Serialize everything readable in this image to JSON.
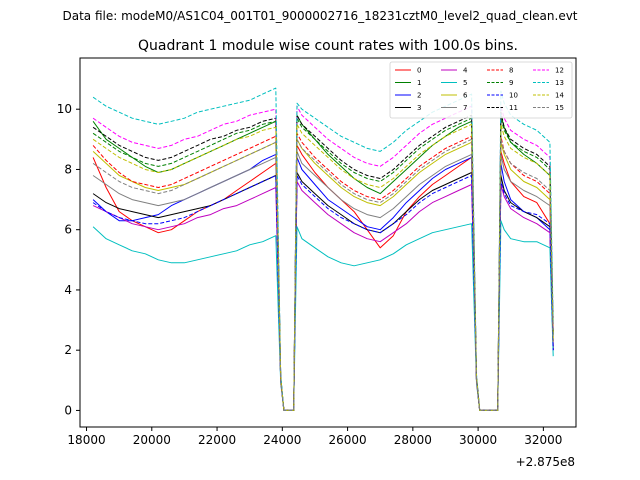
{
  "suptitle": "Data file: modeM0/AS1C04_001T01_9000002716_18231cztM0_level2_quad_clean.evt",
  "chart_data": {
    "type": "line",
    "title": "Quadrant 1 module wise count rates with 100.0s bins.",
    "xlabel": "",
    "ylabel": "",
    "x_offset_label": "+2.875e8",
    "xlim": [
      17800,
      33000
    ],
    "ylim": [
      -0.55,
      11.7
    ],
    "x_ticks": [
      18000,
      20000,
      22000,
      24000,
      26000,
      28000,
      30000,
      32000
    ],
    "x_tick_labels": [
      "18000",
      "20000",
      "22000",
      "24000",
      "26000",
      "28000",
      "30000",
      "32000"
    ],
    "y_ticks": [
      0,
      2,
      4,
      6,
      8,
      10
    ],
    "y_tick_labels": [
      "0",
      "2",
      "4",
      "6",
      "8",
      "10"
    ],
    "grid": false,
    "legend_position": "top-right",
    "x": [
      18200,
      18600,
      19000,
      19400,
      19800,
      20200,
      20600,
      21000,
      21400,
      21800,
      22200,
      22600,
      23000,
      23400,
      23800,
      23950,
      24050,
      24350,
      24450,
      24600,
      25000,
      25400,
      25800,
      26200,
      26600,
      27000,
      27400,
      27800,
      28200,
      28600,
      29000,
      29400,
      29800,
      29950,
      30050,
      30600,
      30700,
      30800,
      31000,
      31400,
      31800,
      32200,
      32300
    ],
    "series": [
      {
        "name": "0",
        "color": "#ff0000",
        "dash": "solid",
        "values": [
          8.4,
          7.4,
          6.6,
          6.3,
          6.1,
          5.9,
          6.0,
          6.3,
          6.6,
          6.8,
          7.0,
          7.3,
          7.6,
          7.9,
          8.2,
          1.0,
          0.0,
          0.0,
          8.8,
          8.5,
          7.9,
          7.4,
          7.0,
          6.6,
          6.0,
          5.4,
          5.8,
          6.6,
          7.1,
          7.5,
          7.8,
          8.1,
          8.4,
          1.0,
          0.0,
          0.0,
          8.6,
          8.2,
          7.6,
          7.1,
          6.9,
          6.2,
          2.1
        ]
      },
      {
        "name": "1",
        "color": "#008000",
        "dash": "solid",
        "values": [
          9.6,
          9.0,
          8.7,
          8.4,
          8.1,
          7.9,
          8.0,
          8.2,
          8.4,
          8.6,
          8.8,
          9.0,
          9.2,
          9.4,
          9.6,
          1.1,
          0.0,
          0.0,
          9.8,
          9.5,
          9.0,
          8.5,
          8.1,
          7.7,
          7.4,
          7.2,
          7.6,
          8.0,
          8.4,
          8.8,
          9.1,
          9.4,
          9.6,
          1.1,
          0.0,
          0.0,
          9.8,
          9.4,
          8.9,
          8.5,
          8.2,
          7.8,
          2.5
        ]
      },
      {
        "name": "2",
        "color": "#0000ff",
        "dash": "solid",
        "values": [
          7.0,
          6.6,
          6.3,
          6.3,
          6.4,
          6.5,
          6.8,
          7.0,
          7.2,
          7.4,
          7.6,
          7.8,
          8.0,
          8.3,
          8.5,
          1.0,
          0.0,
          0.0,
          8.4,
          8.0,
          7.5,
          7.0,
          6.7,
          6.4,
          6.1,
          6.0,
          6.4,
          6.9,
          7.3,
          7.7,
          8.0,
          8.2,
          8.4,
          1.0,
          0.0,
          0.0,
          8.2,
          7.6,
          7.0,
          6.6,
          6.4,
          6.0,
          2.0
        ]
      },
      {
        "name": "3",
        "color": "#000000",
        "dash": "solid",
        "values": [
          7.2,
          6.9,
          6.7,
          6.6,
          6.5,
          6.4,
          6.5,
          6.6,
          6.7,
          6.8,
          7.0,
          7.2,
          7.4,
          7.6,
          7.8,
          1.0,
          0.0,
          0.0,
          7.9,
          7.6,
          7.2,
          6.8,
          6.5,
          6.2,
          6.0,
          5.9,
          6.2,
          6.6,
          7.0,
          7.3,
          7.5,
          7.7,
          7.9,
          1.0,
          0.0,
          0.0,
          7.8,
          7.3,
          6.9,
          6.6,
          6.4,
          6.1,
          2.0
        ]
      },
      {
        "name": "4",
        "color": "#bf00bf",
        "dash": "solid",
        "values": [
          6.8,
          6.6,
          6.4,
          6.2,
          6.1,
          6.0,
          6.1,
          6.2,
          6.4,
          6.5,
          6.7,
          6.8,
          7.0,
          7.2,
          7.4,
          1.0,
          0.0,
          0.0,
          7.6,
          7.3,
          6.9,
          6.5,
          6.2,
          5.9,
          5.7,
          5.6,
          5.9,
          6.2,
          6.6,
          6.9,
          7.1,
          7.3,
          7.5,
          1.0,
          0.0,
          0.0,
          7.5,
          7.1,
          6.7,
          6.4,
          6.2,
          5.9,
          2.0
        ]
      },
      {
        "name": "5",
        "color": "#00bfbf",
        "dash": "solid",
        "values": [
          6.1,
          5.7,
          5.5,
          5.3,
          5.2,
          5.0,
          4.9,
          4.9,
          5.0,
          5.1,
          5.2,
          5.3,
          5.5,
          5.6,
          5.8,
          0.9,
          0.0,
          0.0,
          6.1,
          5.7,
          5.4,
          5.1,
          4.9,
          4.8,
          4.9,
          5.0,
          5.2,
          5.5,
          5.7,
          5.9,
          6.0,
          6.1,
          6.2,
          0.9,
          0.0,
          0.0,
          6.3,
          6.0,
          5.7,
          5.6,
          5.6,
          5.4,
          1.8
        ]
      },
      {
        "name": "6",
        "color": "#bfbf00",
        "dash": "solid",
        "values": [
          8.6,
          8.2,
          7.8,
          7.6,
          7.4,
          7.3,
          7.4,
          7.5,
          7.7,
          7.9,
          8.1,
          8.3,
          8.5,
          8.7,
          8.9,
          1.0,
          0.0,
          0.0,
          9.0,
          8.7,
          8.2,
          7.8,
          7.4,
          7.1,
          6.9,
          6.8,
          7.1,
          7.5,
          7.9,
          8.2,
          8.5,
          8.7,
          8.9,
          1.0,
          0.0,
          0.0,
          8.9,
          8.5,
          8.0,
          7.6,
          7.4,
          7.0,
          2.3
        ]
      },
      {
        "name": "7",
        "color": "#808080",
        "dash": "solid",
        "values": [
          7.8,
          7.5,
          7.2,
          7.0,
          6.9,
          6.8,
          6.9,
          7.0,
          7.2,
          7.4,
          7.6,
          7.8,
          8.0,
          8.2,
          8.4,
          1.0,
          0.0,
          0.0,
          8.6,
          8.2,
          7.8,
          7.4,
          7.0,
          6.7,
          6.5,
          6.4,
          6.7,
          7.1,
          7.5,
          7.8,
          8.1,
          8.3,
          8.5,
          1.0,
          0.0,
          0.0,
          8.5,
          8.0,
          7.6,
          7.3,
          7.1,
          6.8,
          2.2
        ]
      },
      {
        "name": "8",
        "color": "#ff0000",
        "dash": "dashed",
        "values": [
          8.8,
          8.3,
          7.9,
          7.6,
          7.5,
          7.4,
          7.5,
          7.7,
          7.9,
          8.1,
          8.3,
          8.5,
          8.7,
          8.9,
          9.1,
          1.0,
          0.0,
          0.0,
          9.2,
          8.9,
          8.4,
          8.0,
          7.6,
          7.3,
          7.1,
          7.0,
          7.3,
          7.7,
          8.1,
          8.4,
          8.7,
          8.9,
          9.1,
          1.0,
          0.0,
          0.0,
          9.1,
          8.6,
          8.2,
          7.8,
          7.6,
          7.2,
          2.3
        ]
      },
      {
        "name": "9",
        "color": "#008000",
        "dash": "dashed",
        "values": [
          9.2,
          8.9,
          8.6,
          8.4,
          8.2,
          8.1,
          8.2,
          8.4,
          8.6,
          8.8,
          9.0,
          9.2,
          9.3,
          9.5,
          9.6,
          1.1,
          0.0,
          0.0,
          9.7,
          9.4,
          9.0,
          8.6,
          8.2,
          7.9,
          7.7,
          7.6,
          7.9,
          8.3,
          8.7,
          9.0,
          9.3,
          9.5,
          9.7,
          1.1,
          0.0,
          0.0,
          9.7,
          9.3,
          8.9,
          8.6,
          8.4,
          8.0,
          2.5
        ]
      },
      {
        "name": "10",
        "color": "#0000ff",
        "dash": "dashed",
        "values": [
          6.9,
          6.6,
          6.4,
          6.3,
          6.2,
          6.2,
          6.3,
          6.4,
          6.6,
          6.8,
          7.0,
          7.2,
          7.4,
          7.6,
          7.8,
          1.0,
          0.0,
          0.0,
          7.8,
          7.5,
          7.1,
          6.7,
          6.4,
          6.2,
          6.0,
          5.9,
          6.2,
          6.5,
          6.9,
          7.2,
          7.4,
          7.6,
          7.8,
          1.0,
          0.0,
          0.0,
          7.6,
          7.2,
          6.8,
          6.6,
          6.5,
          6.2,
          2.0
        ]
      },
      {
        "name": "11",
        "color": "#000000",
        "dash": "dashed",
        "values": [
          9.4,
          9.1,
          8.8,
          8.6,
          8.4,
          8.3,
          8.4,
          8.6,
          8.8,
          9.0,
          9.1,
          9.3,
          9.4,
          9.6,
          9.7,
          1.1,
          0.0,
          0.0,
          9.8,
          9.5,
          9.1,
          8.7,
          8.3,
          8.0,
          7.8,
          7.7,
          8.0,
          8.4,
          8.8,
          9.1,
          9.4,
          9.6,
          9.8,
          1.1,
          0.0,
          0.0,
          9.9,
          9.4,
          9.0,
          8.7,
          8.5,
          8.1,
          2.6
        ]
      },
      {
        "name": "12",
        "color": "#ff00ff",
        "dash": "dashed",
        "values": [
          9.7,
          9.4,
          9.1,
          8.9,
          8.8,
          8.7,
          8.8,
          9.0,
          9.1,
          9.3,
          9.5,
          9.6,
          9.8,
          9.9,
          10.0,
          1.1,
          0.0,
          0.0,
          10.1,
          9.8,
          9.4,
          9.0,
          8.7,
          8.4,
          8.2,
          8.1,
          8.4,
          8.8,
          9.2,
          9.5,
          9.7,
          9.9,
          10.1,
          1.1,
          0.0,
          0.0,
          10.1,
          9.7,
          9.3,
          9.0,
          8.8,
          8.4,
          2.7
        ]
      },
      {
        "name": "13",
        "color": "#00bfbf",
        "dash": "dashed",
        "values": [
          10.4,
          10.1,
          9.9,
          9.7,
          9.6,
          9.5,
          9.6,
          9.7,
          9.9,
          10.0,
          10.1,
          10.2,
          10.3,
          10.5,
          10.7,
          1.2,
          0.0,
          0.0,
          10.2,
          10.0,
          9.7,
          9.4,
          9.1,
          8.9,
          8.7,
          8.6,
          8.9,
          9.3,
          9.6,
          9.9,
          10.1,
          10.3,
          10.5,
          1.2,
          0.0,
          0.0,
          10.6,
          10.2,
          9.8,
          9.5,
          9.3,
          8.9,
          2.9
        ]
      },
      {
        "name": "14",
        "color": "#bfbf00",
        "dash": "dashed",
        "values": [
          9.0,
          8.7,
          8.4,
          8.2,
          8.0,
          7.9,
          8.0,
          8.2,
          8.4,
          8.6,
          8.8,
          9.0,
          9.1,
          9.3,
          9.4,
          1.1,
          0.0,
          0.0,
          9.5,
          9.2,
          8.8,
          8.4,
          8.0,
          7.7,
          7.5,
          7.4,
          7.7,
          8.1,
          8.5,
          8.8,
          9.1,
          9.3,
          9.5,
          1.1,
          0.0,
          0.0,
          9.5,
          9.1,
          8.7,
          8.4,
          8.2,
          7.8,
          2.4
        ]
      },
      {
        "name": "15",
        "color": "#808080",
        "dash": "dashed",
        "values": [
          8.2,
          7.9,
          7.6,
          7.4,
          7.3,
          7.2,
          7.3,
          7.5,
          7.7,
          7.9,
          8.1,
          8.3,
          8.5,
          8.7,
          8.9,
          1.0,
          0.0,
          0.0,
          9.0,
          8.7,
          8.3,
          7.9,
          7.5,
          7.2,
          7.0,
          6.9,
          7.2,
          7.6,
          8.0,
          8.3,
          8.6,
          8.8,
          9.0,
          1.0,
          0.0,
          0.0,
          9.0,
          8.6,
          8.2,
          7.9,
          7.7,
          7.3,
          2.3
        ]
      }
    ]
  }
}
